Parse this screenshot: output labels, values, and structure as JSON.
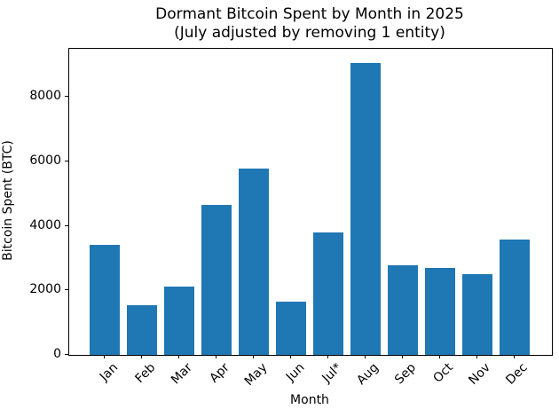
{
  "title": {
    "line1": "Dormant Bitcoin Spent by Month in 2025",
    "line2": "(July adjusted by removing 1 entity)"
  },
  "axes": {
    "xlabel": "Month",
    "ylabel": "Bitcoin Spent (BTC)",
    "y_tick_labels": [
      "0",
      "2000",
      "4000",
      "6000",
      "8000"
    ],
    "y_tick_values": [
      0,
      2000,
      4000,
      6000,
      8000
    ]
  },
  "colors": {
    "bar": "#1f77b4",
    "text": "#000000",
    "spine": "#000000",
    "background": "#ffffff"
  },
  "chart_data": {
    "type": "bar",
    "title": "Dormant Bitcoin Spent by Month in 2025 (July adjusted by removing 1 entity)",
    "xlabel": "Month",
    "ylabel": "Bitcoin Spent (BTC)",
    "categories": [
      "Jan",
      "Feb",
      "Mar",
      "Apr",
      "May",
      "Jun",
      "Jul*",
      "Aug",
      "Sep",
      "Oct",
      "Nov",
      "Dec"
    ],
    "values": [
      3400,
      1540,
      2110,
      4650,
      5780,
      1650,
      3800,
      9040,
      2780,
      2710,
      2500,
      3570
    ],
    "ylim": [
      0,
      9490
    ],
    "y_ticks": [
      0,
      2000,
      4000,
      6000,
      8000
    ],
    "grid": false,
    "legend": null,
    "bar_color": "#1f77b4"
  }
}
